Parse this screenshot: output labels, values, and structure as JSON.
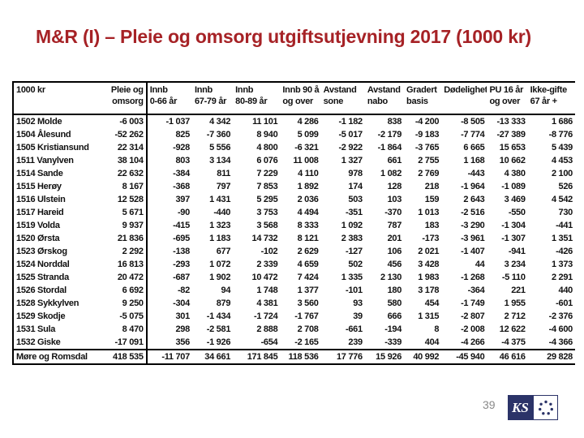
{
  "slide": {
    "title": "M&R (I) – Pleie og omsorg utgiftsutjevning 2017 (1000 kr)",
    "page_number": "39"
  },
  "logo": {
    "ks_text": "KS"
  },
  "table": {
    "unit_label": "1000 kr",
    "columns": [
      {
        "line1": "Pleie og",
        "line2": "omsorg",
        "align": "right"
      },
      {
        "line1": "Innb",
        "line2": "0-66 år"
      },
      {
        "line1": "Innb",
        "line2": "67-79 år"
      },
      {
        "line1": "Innb",
        "line2": "80-89 år"
      },
      {
        "line1": "Innb 90 å",
        "line2": "og over"
      },
      {
        "line1": "Avstand",
        "line2": "sone"
      },
      {
        "line1": "Avstand",
        "line2": "nabo"
      },
      {
        "line1": "Gradert",
        "line2": "basis"
      },
      {
        "line1": "Dødelighet",
        "line2": ""
      },
      {
        "line1": "PU 16 år",
        "line2": "og over"
      },
      {
        "line1": "Ikke-gifte",
        "line2": "67 år +"
      }
    ],
    "rows": [
      {
        "label": "1502 Molde",
        "values": [
          "-6 003",
          "-1 037",
          "4 342",
          "11 101",
          "4 286",
          "-1 182",
          "838",
          "-4 200",
          "-8 505",
          "-13 333",
          "1 686"
        ]
      },
      {
        "label": "1504 Ålesund",
        "values": [
          "-52 262",
          "825",
          "-7 360",
          "8 940",
          "5 099",
          "-5 017",
          "-2 179",
          "-9 183",
          "-7 774",
          "-27 389",
          "-8 776"
        ]
      },
      {
        "label": "1505 Kristiansund",
        "values": [
          "22 314",
          "-928",
          "5 556",
          "4 800",
          "-6 321",
          "-2 922",
          "-1 864",
          "-3 765",
          "6 665",
          "15 653",
          "5 439"
        ]
      },
      {
        "label": "1511 Vanylven",
        "values": [
          "38 104",
          "803",
          "3 134",
          "6 076",
          "11 008",
          "1 327",
          "661",
          "2 755",
          "1 168",
          "10 662",
          "4 453"
        ]
      },
      {
        "label": "1514 Sande",
        "values": [
          "22 632",
          "-384",
          "811",
          "7 229",
          "4 110",
          "978",
          "1 082",
          "2 769",
          "-443",
          "4 380",
          "2 100"
        ]
      },
      {
        "label": "1515 Herøy",
        "values": [
          "8 167",
          "-368",
          "797",
          "7 853",
          "1 892",
          "174",
          "128",
          "218",
          "-1 964",
          "-1 089",
          "526"
        ]
      },
      {
        "label": "1516 Ulstein",
        "values": [
          "12 528",
          "397",
          "1 431",
          "5 295",
          "2 036",
          "503",
          "103",
          "159",
          "2 643",
          "3 469",
          "4 542"
        ]
      },
      {
        "label": "1517 Hareid",
        "values": [
          "5 671",
          "-90",
          "-440",
          "3 753",
          "4 494",
          "-351",
          "-370",
          "1 013",
          "-2 516",
          "-550",
          "730"
        ]
      },
      {
        "label": "1519 Volda",
        "values": [
          "9 937",
          "-415",
          "1 323",
          "3 568",
          "8 333",
          "1 092",
          "787",
          "183",
          "-3 290",
          "-1 304",
          "-441"
        ]
      },
      {
        "label": "1520 Ørsta",
        "values": [
          "21 836",
          "-695",
          "1 183",
          "14 732",
          "8 121",
          "2 383",
          "201",
          "-173",
          "-3 961",
          "-1 307",
          "1 351"
        ]
      },
      {
        "label": "1523 Ørskog",
        "values": [
          "2 292",
          "-138",
          "677",
          "-102",
          "2 629",
          "-127",
          "106",
          "2 021",
          "-1 407",
          "-941",
          "-426"
        ]
      },
      {
        "label": "1524 Norddal",
        "values": [
          "16 813",
          "-293",
          "1 072",
          "2 339",
          "4 659",
          "502",
          "456",
          "3 428",
          "44",
          "3 234",
          "1 373"
        ]
      },
      {
        "label": "1525 Stranda",
        "values": [
          "20 472",
          "-687",
          "1 902",
          "10 472",
          "7 424",
          "1 335",
          "2 130",
          "1 983",
          "-1 268",
          "-5 110",
          "2 291"
        ]
      },
      {
        "label": "1526 Stordal",
        "values": [
          "6 692",
          "-82",
          "94",
          "1 748",
          "1 377",
          "-101",
          "180",
          "3 178",
          "-364",
          "221",
          "440"
        ]
      },
      {
        "label": "1528 Sykkylven",
        "values": [
          "9 250",
          "-304",
          "879",
          "4 381",
          "3 560",
          "93",
          "580",
          "454",
          "-1 749",
          "1 955",
          "-601"
        ]
      },
      {
        "label": "1529 Skodje",
        "values": [
          "-5 075",
          "301",
          "-1 434",
          "-1 724",
          "-1 767",
          "39",
          "666",
          "1 315",
          "-2 807",
          "2 712",
          "-2 376"
        ]
      },
      {
        "label": "1531 Sula",
        "values": [
          "8 470",
          "298",
          "-2 581",
          "2 888",
          "2 708",
          "-661",
          "-194",
          "8",
          "-2 008",
          "12 622",
          "-4 600"
        ]
      },
      {
        "label": "1532 Giske",
        "values": [
          "-17 091",
          "356",
          "-1 926",
          "-654",
          "-2 165",
          "239",
          "-339",
          "404",
          "-4 266",
          "-4 375",
          "-4 366"
        ]
      }
    ],
    "total_row": {
      "label": "Møre og Romsdal",
      "values": [
        "418 535",
        "-11 707",
        "34 661",
        "171 845",
        "118 536",
        "17 776",
        "15 926",
        "40 992",
        "-45 940",
        "46 616",
        "29 828"
      ]
    }
  }
}
